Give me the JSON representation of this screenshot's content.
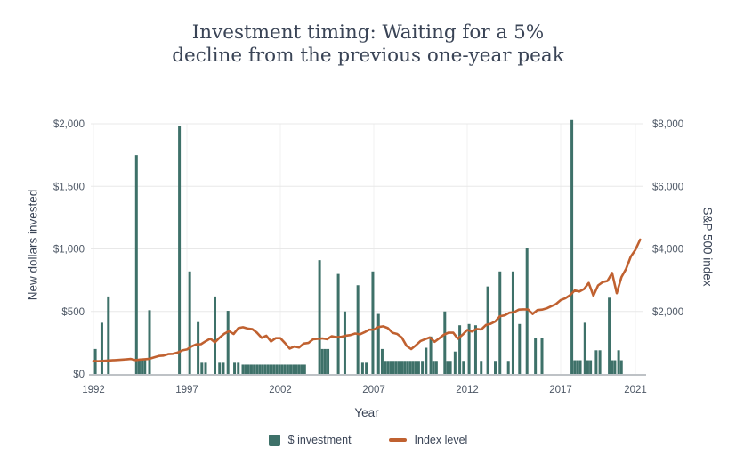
{
  "title": {
    "line1": "Investment timing: Waiting for a 5%",
    "line2": "decline from the previous one-year peak"
  },
  "colors": {
    "bar": "#3e7169",
    "line": "#c06130",
    "grid": "#e8e8e8",
    "grid_vertical": "#f1f1f1",
    "axis_line": "#a9aeb4",
    "tick_text": "#4e5866",
    "title_text": "#3a4456"
  },
  "legend": {
    "investment_label": "$ investment",
    "index_label": "Index level"
  },
  "chart_data": {
    "type": "combo (bar + line)",
    "title": "Investment timing: Waiting for a 5% decline from the previous one-year peak",
    "xlabel": "Year",
    "ylabel_left": "New dollars invested",
    "ylabel_right": "S&P 500 index",
    "grid": "on",
    "legend_position": "bottom-center",
    "x_axis": {
      "range": [
        1992,
        2021.6
      ],
      "ticks": [
        {
          "label": "1992",
          "value": 1992
        },
        {
          "label": "1997",
          "value": 1997
        },
        {
          "label": "2002",
          "value": 2002
        },
        {
          "label": "2007",
          "value": 2007
        },
        {
          "label": "2012",
          "value": 2012
        },
        {
          "label": "2017",
          "value": 2017
        },
        {
          "label": "2021",
          "value": 2021
        }
      ]
    },
    "y_axis_left": {
      "range": [
        0,
        2050
      ],
      "ticks": [
        {
          "label": "$0",
          "value": 0
        },
        {
          "label": "$500",
          "value": 500
        },
        {
          "label": "$1,000",
          "value": 1000
        },
        {
          "label": "$1,500",
          "value": 1500
        },
        {
          "label": "$2,000",
          "value": 2000
        }
      ]
    },
    "y_axis_right": {
      "range": [
        0,
        8200
      ],
      "ticks": [
        {
          "label": "$2,000",
          "value": 2000
        },
        {
          "label": "$4,000",
          "value": 4000
        },
        {
          "label": "$6,000",
          "value": 6000
        },
        {
          "label": "$8,000",
          "value": 8000
        }
      ]
    },
    "series": [
      {
        "name": "$ investment",
        "type": "bar",
        "axis": "left",
        "points": [
          [
            1992.1,
            200
          ],
          [
            1992.45,
            410
          ],
          [
            1992.8,
            620
          ],
          [
            1994.3,
            1750
          ],
          [
            1994.45,
            110
          ],
          [
            1994.6,
            110
          ],
          [
            1994.75,
            110
          ],
          [
            1995.0,
            510
          ],
          [
            1996.6,
            1980
          ],
          [
            1997.15,
            820
          ],
          [
            1997.6,
            415
          ],
          [
            1997.8,
            90
          ],
          [
            1998.0,
            90
          ],
          [
            1998.5,
            620
          ],
          [
            1998.75,
            90
          ],
          [
            1998.95,
            90
          ],
          [
            1999.2,
            505
          ],
          [
            1999.55,
            90
          ],
          [
            1999.75,
            90
          ],
          [
            2000.0,
            75
          ],
          [
            2000.15,
            75
          ],
          [
            2000.3,
            75
          ],
          [
            2000.45,
            75
          ],
          [
            2000.6,
            75
          ],
          [
            2000.75,
            75
          ],
          [
            2000.9,
            75
          ],
          [
            2001.05,
            75
          ],
          [
            2001.2,
            75
          ],
          [
            2001.35,
            75
          ],
          [
            2001.5,
            75
          ],
          [
            2001.65,
            75
          ],
          [
            2001.8,
            75
          ],
          [
            2001.95,
            75
          ],
          [
            2002.1,
            75
          ],
          [
            2002.25,
            75
          ],
          [
            2002.4,
            75
          ],
          [
            2002.55,
            75
          ],
          [
            2002.7,
            75
          ],
          [
            2002.85,
            75
          ],
          [
            2003.0,
            75
          ],
          [
            2003.15,
            75
          ],
          [
            2003.3,
            75
          ],
          [
            2004.1,
            910
          ],
          [
            2004.25,
            200
          ],
          [
            2004.4,
            200
          ],
          [
            2004.55,
            200
          ],
          [
            2005.1,
            800
          ],
          [
            2005.45,
            500
          ],
          [
            2006.15,
            710
          ],
          [
            2006.4,
            90
          ],
          [
            2006.6,
            90
          ],
          [
            2006.95,
            820
          ],
          [
            2007.25,
            480
          ],
          [
            2007.45,
            200
          ],
          [
            2007.6,
            105
          ],
          [
            2007.75,
            105
          ],
          [
            2007.9,
            105
          ],
          [
            2008.05,
            105
          ],
          [
            2008.2,
            105
          ],
          [
            2008.35,
            105
          ],
          [
            2008.5,
            105
          ],
          [
            2008.65,
            105
          ],
          [
            2008.8,
            105
          ],
          [
            2008.95,
            105
          ],
          [
            2009.1,
            105
          ],
          [
            2009.25,
            105
          ],
          [
            2009.4,
            105
          ],
          [
            2009.6,
            105
          ],
          [
            2009.8,
            210
          ],
          [
            2010.05,
            300
          ],
          [
            2010.2,
            105
          ],
          [
            2010.35,
            105
          ],
          [
            2010.8,
            500
          ],
          [
            2010.95,
            105
          ],
          [
            2011.1,
            105
          ],
          [
            2011.35,
            180
          ],
          [
            2011.6,
            390
          ],
          [
            2011.8,
            105
          ],
          [
            2012.1,
            400
          ],
          [
            2012.45,
            390
          ],
          [
            2012.75,
            105
          ],
          [
            2013.1,
            700
          ],
          [
            2013.5,
            105
          ],
          [
            2013.75,
            820
          ],
          [
            2014.2,
            105
          ],
          [
            2014.45,
            820
          ],
          [
            2014.8,
            400
          ],
          [
            2015.2,
            1010
          ],
          [
            2015.65,
            290
          ],
          [
            2016.0,
            290
          ],
          [
            2017.6,
            2030
          ],
          [
            2017.75,
            110
          ],
          [
            2017.9,
            110
          ],
          [
            2018.05,
            110
          ],
          [
            2018.3,
            410
          ],
          [
            2018.45,
            110
          ],
          [
            2018.6,
            110
          ],
          [
            2018.9,
            190
          ],
          [
            2019.1,
            190
          ],
          [
            2019.6,
            610
          ],
          [
            2019.75,
            110
          ],
          [
            2019.9,
            110
          ],
          [
            2020.1,
            190
          ],
          [
            2020.25,
            110
          ]
        ]
      },
      {
        "name": "Index level",
        "type": "line",
        "axis": "right",
        "points": [
          [
            1992.0,
            415
          ],
          [
            1992.25,
            408
          ],
          [
            1992.5,
            418
          ],
          [
            1992.75,
            431
          ],
          [
            1993.0,
            439
          ],
          [
            1993.25,
            448
          ],
          [
            1993.5,
            459
          ],
          [
            1993.75,
            466
          ],
          [
            1994.0,
            482
          ],
          [
            1994.25,
            445
          ],
          [
            1994.5,
            462
          ],
          [
            1994.75,
            472
          ],
          [
            1995.0,
            487
          ],
          [
            1995.25,
            533
          ],
          [
            1995.5,
            578
          ],
          [
            1995.75,
            590
          ],
          [
            1996.0,
            637
          ],
          [
            1996.25,
            646
          ],
          [
            1996.5,
            687
          ],
          [
            1996.75,
            757
          ],
          [
            1997.0,
            786
          ],
          [
            1997.25,
            885
          ],
          [
            1997.5,
            947
          ],
          [
            1997.75,
            955
          ],
          [
            1998.0,
            1049
          ],
          [
            1998.25,
            1133
          ],
          [
            1998.5,
            1017
          ],
          [
            1998.75,
            1163
          ],
          [
            1999.0,
            1286
          ],
          [
            1999.25,
            1372
          ],
          [
            1999.5,
            1282
          ],
          [
            1999.75,
            1469
          ],
          [
            2000.0,
            1498
          ],
          [
            2000.25,
            1454
          ],
          [
            2000.5,
            1436
          ],
          [
            2000.75,
            1320
          ],
          [
            2001.0,
            1160
          ],
          [
            2001.25,
            1224
          ],
          [
            2001.5,
            1040
          ],
          [
            2001.75,
            1148
          ],
          [
            2002.0,
            1147
          ],
          [
            2002.25,
            989
          ],
          [
            2002.5,
            815
          ],
          [
            2002.75,
            879
          ],
          [
            2003.0,
            848
          ],
          [
            2003.25,
            974
          ],
          [
            2003.5,
            995
          ],
          [
            2003.75,
            1111
          ],
          [
            2004.0,
            1126
          ],
          [
            2004.25,
            1140
          ],
          [
            2004.5,
            1114
          ],
          [
            2004.75,
            1211
          ],
          [
            2005.0,
            1180
          ],
          [
            2005.25,
            1191
          ],
          [
            2005.5,
            1228
          ],
          [
            2005.75,
            1248
          ],
          [
            2006.0,
            1294
          ],
          [
            2006.25,
            1270
          ],
          [
            2006.5,
            1335
          ],
          [
            2006.75,
            1418
          ],
          [
            2007.0,
            1420
          ],
          [
            2007.25,
            1503
          ],
          [
            2007.5,
            1526
          ],
          [
            2007.75,
            1468
          ],
          [
            2008.0,
            1322
          ],
          [
            2008.25,
            1280
          ],
          [
            2008.5,
            1166
          ],
          [
            2008.75,
            903
          ],
          [
            2009.0,
            797
          ],
          [
            2009.25,
            919
          ],
          [
            2009.5,
            1057
          ],
          [
            2009.75,
            1115
          ],
          [
            2010.0,
            1169
          ],
          [
            2010.25,
            1030
          ],
          [
            2010.5,
            1141
          ],
          [
            2010.75,
            1257
          ],
          [
            2011.0,
            1325
          ],
          [
            2011.25,
            1320
          ],
          [
            2011.5,
            1131
          ],
          [
            2011.75,
            1257
          ],
          [
            2012.0,
            1408
          ],
          [
            2012.25,
            1362
          ],
          [
            2012.5,
            1440
          ],
          [
            2012.75,
            1426
          ],
          [
            2013.0,
            1569
          ],
          [
            2013.25,
            1606
          ],
          [
            2013.5,
            1681
          ],
          [
            2013.75,
            1848
          ],
          [
            2014.0,
            1872
          ],
          [
            2014.25,
            1960
          ],
          [
            2014.5,
            1972
          ],
          [
            2014.75,
            2058
          ],
          [
            2015.0,
            2067
          ],
          [
            2015.25,
            2063
          ],
          [
            2015.5,
            1920
          ],
          [
            2015.75,
            2043
          ],
          [
            2016.0,
            2059
          ],
          [
            2016.25,
            2098
          ],
          [
            2016.5,
            2168
          ],
          [
            2016.75,
            2238
          ],
          [
            2017.0,
            2362
          ],
          [
            2017.25,
            2423
          ],
          [
            2017.5,
            2519
          ],
          [
            2017.75,
            2673
          ],
          [
            2018.0,
            2640
          ],
          [
            2018.25,
            2718
          ],
          [
            2018.5,
            2913
          ],
          [
            2018.75,
            2506
          ],
          [
            2019.0,
            2834
          ],
          [
            2019.25,
            2941
          ],
          [
            2019.5,
            2976
          ],
          [
            2019.75,
            3230
          ],
          [
            2020.0,
            2584
          ],
          [
            2020.25,
            3100
          ],
          [
            2020.5,
            3363
          ],
          [
            2020.75,
            3756
          ],
          [
            2021.0,
            3972
          ],
          [
            2021.25,
            4300
          ]
        ]
      }
    ]
  }
}
